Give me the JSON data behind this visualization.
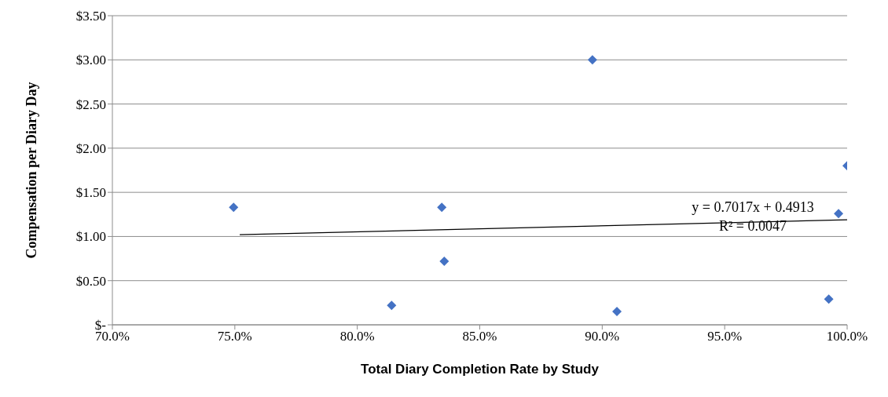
{
  "chart_data": {
    "type": "scatter",
    "xlabel": "Total Diary Completion Rate by Study",
    "ylabel": "Compensation per Diary Day",
    "series": [
      {
        "color": "#4472c4",
        "marker": "diamond",
        "x": [
          74.95,
          81.4,
          83.45,
          83.55,
          89.6,
          90.6,
          99.25,
          99.65,
          100
        ],
        "values": [
          1.33,
          0.22,
          1.33,
          0.72,
          3.0,
          0.15,
          0.29,
          1.26,
          1.8
        ]
      },
      {
        "type": "line",
        "color": "#000000",
        "marker": "none",
        "x": [
          75.2,
          100
        ],
        "values": [
          1.02,
          1.19
        ]
      }
    ],
    "grid": "y",
    "legend": false,
    "xlim": [
      70,
      100
    ],
    "xticks": [
      {
        "value": 70,
        "label": "70.0%"
      },
      {
        "value": 75,
        "label": "75.0%"
      },
      {
        "value": 80,
        "label": "80.0%"
      },
      {
        "value": 85,
        "label": "85.0%"
      },
      {
        "value": 90,
        "label": "90.0%"
      },
      {
        "value": 95,
        "label": "95.0%"
      },
      {
        "value": 100,
        "label": "100.0%"
      }
    ],
    "ylim": [
      0,
      3.5
    ],
    "yticks": [
      {
        "value": 0,
        "label": "$-"
      },
      {
        "value": 0.5,
        "label": "$0.50"
      },
      {
        "value": 1,
        "label": "$1.00"
      },
      {
        "value": 1.5,
        "label": "$1.50"
      },
      {
        "value": 2,
        "label": "$2.00"
      },
      {
        "value": 2.5,
        "label": "$2.50"
      },
      {
        "value": 3,
        "label": "$3.00"
      },
      {
        "value": 3.5,
        "label": "$3.50"
      }
    ],
    "annotations": [
      "y = 0.7017x + 0.4913",
      "R² = 0.0047"
    ]
  }
}
